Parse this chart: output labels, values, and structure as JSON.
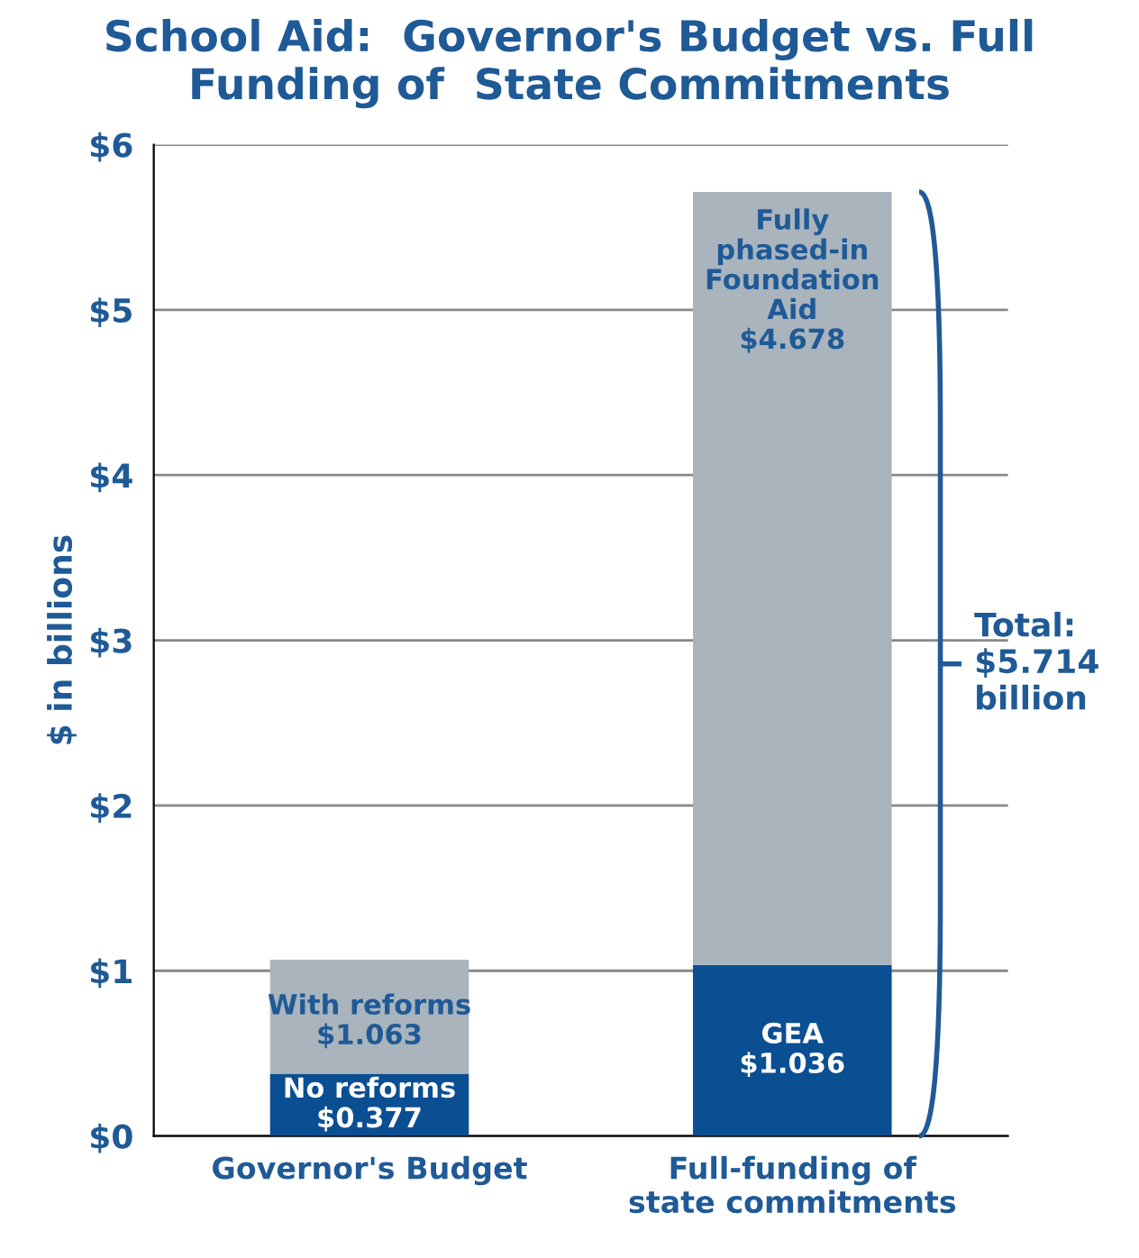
{
  "chart_data": {
    "type": "bar",
    "stacked": true,
    "title": "School Aid:  Governor's Budget vs. Full\nFunding of  State Commitments",
    "ylabel": "$ in billions",
    "categories": [
      "Governor's Budget",
      "Full-funding of\nstate commitments"
    ],
    "series": [
      {
        "color": "#0b4f93",
        "values": [
          0.377,
          1.036
        ],
        "value_labels": [
          "No reforms\n$0.377",
          "GEA\n$1.036"
        ]
      },
      {
        "color": "#a9b4bd",
        "values": [
          0.69,
          4.678
        ],
        "value_labels": [
          null,
          "Fully\nphased-in\nFoundation\nAid\n$4.678"
        ]
      }
    ],
    "ylim": [
      0,
      6
    ],
    "yticks": [
      {
        "value": 0,
        "label": "$0"
      },
      {
        "value": 1,
        "label": "$1"
      },
      {
        "value": 2,
        "label": "$2"
      },
      {
        "value": 3,
        "label": "$3"
      },
      {
        "value": 4,
        "label": "$4"
      },
      {
        "value": 5,
        "label": "$5"
      },
      {
        "value": 6,
        "label": "$6"
      }
    ],
    "grid": "y",
    "legend": false,
    "annotations": [
      "With reforms\n$1.063",
      "Total:\n$5.714\nbillion"
    ]
  }
}
